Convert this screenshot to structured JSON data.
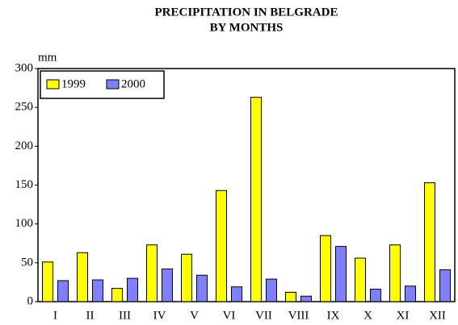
{
  "chart_data": {
    "type": "bar",
    "title": [
      "PRECIPITATION IN BELGRADE",
      "BY MONTHS"
    ],
    "ylabel": "mm",
    "categories": [
      "I",
      "II",
      "III",
      "IV",
      "V",
      "VI",
      "VII",
      "VIII",
      "IX",
      "X",
      "XI",
      "XII"
    ],
    "series": [
      {
        "name": "1999",
        "color": "#ffff00",
        "values": [
          51,
          63,
          17,
          73,
          61,
          143,
          263,
          12,
          85,
          56,
          73,
          153
        ]
      },
      {
        "name": "2000",
        "color": "#8080ff",
        "values": [
          27,
          28,
          30,
          42,
          34,
          19,
          29,
          7,
          71,
          16,
          20,
          41
        ]
      }
    ],
    "ylim": [
      0,
      300
    ],
    "yticks": [
      0,
      50,
      100,
      150,
      200,
      250,
      300
    ],
    "legend": "upper left",
    "grid": false
  }
}
